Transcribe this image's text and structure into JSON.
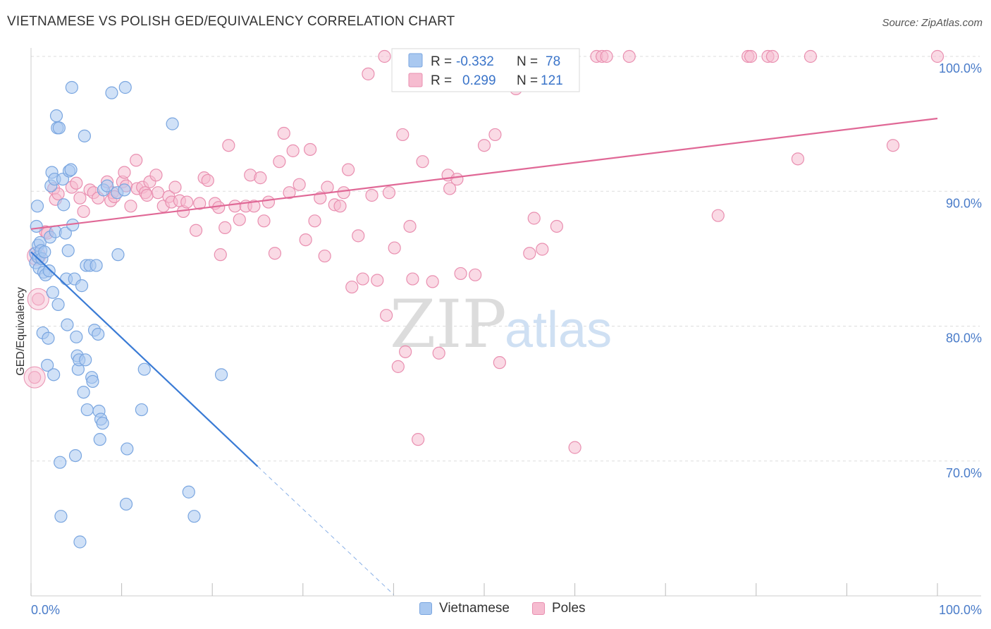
{
  "title": "VIETNAMESE VS POLISH GED/EQUIVALENCY CORRELATION CHART",
  "source": "Source: ZipAtlas.com",
  "watermark": {
    "zip": "ZIP",
    "atlas": "atlas"
  },
  "colors": {
    "blue_fill": "#a9c8f0",
    "blue_stroke": "#7aa6e0",
    "blue_line": "#3a7bd5",
    "pink_fill": "#f6bcd0",
    "pink_stroke": "#e98fb0",
    "pink_line": "#e06896",
    "axis_label": "#4a7cc9",
    "grid": "#dddddd"
  },
  "legend": [
    {
      "r_label": "R =",
      "r_value": "-0.332",
      "n_label": "N =",
      "n_value": "78"
    },
    {
      "r_label": "R =",
      "r_value": "0.299",
      "n_label": "N =",
      "n_value": "121"
    }
  ],
  "chart_data": {
    "type": "scatter",
    "xlabel": "",
    "ylabel": "GED/Equivalency",
    "xlim": [
      0,
      100
    ],
    "ylim": [
      60,
      101.5
    ],
    "x_tick_labels": [
      {
        "x": 0,
        "label": "0.0%"
      },
      {
        "x": 100,
        "label": "100.0%"
      }
    ],
    "y_ticks": [
      {
        "y": 70,
        "label": "70.0%"
      },
      {
        "y": 80,
        "label": "80.0%"
      },
      {
        "y": 90,
        "label": "90.0%"
      },
      {
        "y": 100,
        "label": "100.0%"
      }
    ],
    "series": [
      {
        "name": "Vietnamese",
        "color": "blue",
        "trend": {
          "x": [
            0,
            25
          ],
          "y": [
            85.5,
            69.6
          ],
          "dashed_to": [
            40,
            60.1
          ]
        },
        "points": [
          [
            0.5,
            84.7
          ],
          [
            0.5,
            85.4
          ],
          [
            0.6,
            87.4
          ],
          [
            0.7,
            88.9
          ],
          [
            0.8,
            86.0
          ],
          [
            0.8,
            85.1
          ],
          [
            0.9,
            84.3
          ],
          [
            1.0,
            86.2
          ],
          [
            1.1,
            85.6
          ],
          [
            1.2,
            85.0
          ],
          [
            1.3,
            79.5
          ],
          [
            1.4,
            84.0
          ],
          [
            1.5,
            85.5
          ],
          [
            1.6,
            83.8
          ],
          [
            1.8,
            77.1
          ],
          [
            1.9,
            79.1
          ],
          [
            2.0,
            84.1
          ],
          [
            2.1,
            86.6
          ],
          [
            2.2,
            90.4
          ],
          [
            2.3,
            91.4
          ],
          [
            2.4,
            82.5
          ],
          [
            2.5,
            76.4
          ],
          [
            2.6,
            90.9
          ],
          [
            2.7,
            87.0
          ],
          [
            2.8,
            95.6
          ],
          [
            2.9,
            94.7
          ],
          [
            3.0,
            81.6
          ],
          [
            3.1,
            94.7
          ],
          [
            3.2,
            69.9
          ],
          [
            3.3,
            65.9
          ],
          [
            3.5,
            90.9
          ],
          [
            3.6,
            89.0
          ],
          [
            3.8,
            86.9
          ],
          [
            3.9,
            83.5
          ],
          [
            4.0,
            80.1
          ],
          [
            4.1,
            85.6
          ],
          [
            4.2,
            91.5
          ],
          [
            4.4,
            91.6
          ],
          [
            4.5,
            97.7
          ],
          [
            4.6,
            87.5
          ],
          [
            4.8,
            83.5
          ],
          [
            4.9,
            70.4
          ],
          [
            5.0,
            79.2
          ],
          [
            5.1,
            77.8
          ],
          [
            5.2,
            76.8
          ],
          [
            5.3,
            77.5
          ],
          [
            5.4,
            64.0
          ],
          [
            5.6,
            83.0
          ],
          [
            5.8,
            75.1
          ],
          [
            5.9,
            94.1
          ],
          [
            6.0,
            77.5
          ],
          [
            6.1,
            84.5
          ],
          [
            6.2,
            73.8
          ],
          [
            6.5,
            84.5
          ],
          [
            6.7,
            76.2
          ],
          [
            6.8,
            75.9
          ],
          [
            7.0,
            79.7
          ],
          [
            7.2,
            84.5
          ],
          [
            7.4,
            79.4
          ],
          [
            7.5,
            73.7
          ],
          [
            7.6,
            71.6
          ],
          [
            7.7,
            73.1
          ],
          [
            7.9,
            72.8
          ],
          [
            8.0,
            90.1
          ],
          [
            8.4,
            90.4
          ],
          [
            8.9,
            97.3
          ],
          [
            9.5,
            89.9
          ],
          [
            9.6,
            85.3
          ],
          [
            10.3,
            90.1
          ],
          [
            10.4,
            97.7
          ],
          [
            10.5,
            66.8
          ],
          [
            10.6,
            70.9
          ],
          [
            12.2,
            73.8
          ],
          [
            12.5,
            76.8
          ],
          [
            15.6,
            95.0
          ],
          [
            17.4,
            67.7
          ],
          [
            18.0,
            65.9
          ],
          [
            21.0,
            76.4
          ]
        ]
      },
      {
        "name": "Poles",
        "color": "pink",
        "trend": {
          "x": [
            0,
            100
          ],
          "y": [
            87.2,
            95.4
          ]
        },
        "points": [
          [
            0.4,
            76.2
          ],
          [
            0.6,
            85.2
          ],
          [
            0.8,
            82.0
          ],
          [
            1.6,
            87.0
          ],
          [
            1.8,
            86.9
          ],
          [
            2.5,
            90.2
          ],
          [
            2.7,
            89.4
          ],
          [
            3.0,
            89.8
          ],
          [
            4.5,
            90.3
          ],
          [
            5.0,
            90.6
          ],
          [
            5.4,
            89.5
          ],
          [
            5.8,
            88.5
          ],
          [
            6.5,
            90.1
          ],
          [
            6.9,
            89.9
          ],
          [
            7.4,
            89.5
          ],
          [
            8.4,
            90.7
          ],
          [
            8.8,
            89.3
          ],
          [
            9.0,
            89.9
          ],
          [
            9.2,
            89.6
          ],
          [
            10.1,
            90.7
          ],
          [
            10.3,
            91.4
          ],
          [
            10.5,
            90.4
          ],
          [
            11.0,
            88.9
          ],
          [
            11.6,
            92.3
          ],
          [
            11.7,
            90.2
          ],
          [
            12.3,
            90.3
          ],
          [
            12.6,
            89.9
          ],
          [
            12.8,
            89.7
          ],
          [
            13.1,
            90.7
          ],
          [
            13.8,
            91.2
          ],
          [
            14.0,
            89.9
          ],
          [
            14.6,
            88.9
          ],
          [
            15.2,
            89.6
          ],
          [
            15.5,
            89.2
          ],
          [
            15.9,
            90.3
          ],
          [
            16.4,
            89.3
          ],
          [
            16.8,
            88.5
          ],
          [
            17.2,
            89.2
          ],
          [
            18.2,
            87.1
          ],
          [
            18.6,
            89.1
          ],
          [
            19.1,
            91.0
          ],
          [
            19.5,
            90.8
          ],
          [
            20.3,
            89.1
          ],
          [
            20.7,
            88.8
          ],
          [
            20.9,
            85.3
          ],
          [
            21.4,
            87.3
          ],
          [
            21.8,
            93.4
          ],
          [
            22.5,
            88.9
          ],
          [
            23.0,
            87.9
          ],
          [
            23.7,
            88.9
          ],
          [
            24.2,
            91.2
          ],
          [
            24.6,
            88.9
          ],
          [
            25.3,
            91.0
          ],
          [
            25.7,
            87.8
          ],
          [
            26.2,
            89.2
          ],
          [
            26.9,
            85.4
          ],
          [
            27.4,
            92.2
          ],
          [
            27.9,
            94.3
          ],
          [
            28.5,
            89.9
          ],
          [
            28.9,
            93.0
          ],
          [
            29.6,
            90.5
          ],
          [
            30.3,
            86.4
          ],
          [
            30.8,
            93.1
          ],
          [
            31.3,
            87.8
          ],
          [
            31.9,
            89.5
          ],
          [
            32.4,
            85.2
          ],
          [
            32.7,
            90.3
          ],
          [
            33.5,
            89.0
          ],
          [
            34.1,
            88.9
          ],
          [
            34.5,
            89.9
          ],
          [
            35.0,
            91.6
          ],
          [
            35.4,
            82.9
          ],
          [
            36.1,
            86.7
          ],
          [
            36.6,
            83.5
          ],
          [
            37.2,
            98.7
          ],
          [
            37.6,
            89.7
          ],
          [
            38.2,
            83.4
          ],
          [
            39.0,
            100.0
          ],
          [
            39.2,
            80.8
          ],
          [
            39.5,
            89.9
          ],
          [
            40.1,
            85.8
          ],
          [
            40.5,
            77.0
          ],
          [
            41.0,
            94.2
          ],
          [
            41.3,
            78.1
          ],
          [
            41.8,
            87.4
          ],
          [
            42.1,
            83.5
          ],
          [
            42.7,
            71.6
          ],
          [
            43.2,
            92.2
          ],
          [
            43.8,
            100.0
          ],
          [
            44.3,
            83.3
          ],
          [
            45.0,
            78.0
          ],
          [
            46.0,
            91.2
          ],
          [
            46.2,
            90.2
          ],
          [
            47.0,
            90.9
          ],
          [
            47.4,
            83.9
          ],
          [
            48.0,
            100.0
          ],
          [
            49.0,
            83.8
          ],
          [
            50.0,
            93.4
          ],
          [
            51.2,
            94.2
          ],
          [
            51.7,
            77.3
          ],
          [
            52.5,
            100.0
          ],
          [
            53.0,
            100.0
          ],
          [
            53.5,
            97.6
          ],
          [
            54.0,
            100.0
          ],
          [
            55.0,
            85.4
          ],
          [
            55.5,
            88.0
          ],
          [
            56.4,
            85.7
          ],
          [
            58.0,
            87.4
          ],
          [
            60.0,
            71.0
          ],
          [
            62.4,
            100.0
          ],
          [
            63.0,
            100.0
          ],
          [
            63.5,
            100.0
          ],
          [
            66.0,
            100.0
          ],
          [
            75.8,
            88.2
          ],
          [
            79.1,
            100.0
          ],
          [
            79.4,
            100.0
          ],
          [
            81.3,
            100.0
          ],
          [
            81.8,
            100.0
          ],
          [
            84.6,
            92.4
          ],
          [
            86.0,
            100.0
          ],
          [
            95.1,
            93.4
          ],
          [
            100.0,
            100.0
          ]
        ]
      }
    ]
  }
}
